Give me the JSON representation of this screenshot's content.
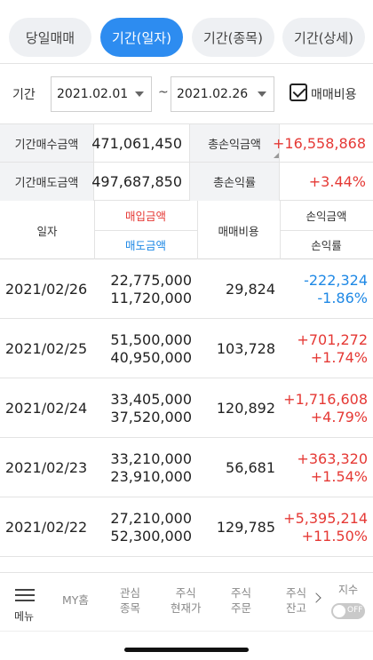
{
  "tabs": [
    {
      "label": "당일매매",
      "active": false
    },
    {
      "label": "기간(일자)",
      "active": true
    },
    {
      "label": "기간(종목)",
      "active": false
    },
    {
      "label": "기간(상세)",
      "active": false
    }
  ],
  "filter": {
    "label": "기간",
    "start_date": "2021.02.01",
    "separator": "~",
    "end_date": "2021.02.26",
    "fee_checkbox_label": "매매비용",
    "fee_checked": true
  },
  "summary": {
    "buy_label": "기간매수금액",
    "buy_value": "471,061,450",
    "pl_label": "총손익금액",
    "pl_value": "+16,558,868",
    "sell_label": "기간매도금액",
    "sell_value": "497,687,850",
    "rate_label": "총손익률",
    "rate_value": "+3.44%"
  },
  "table": {
    "headers": {
      "date": "일자",
      "buy": "매입금액",
      "sell": "매도금액",
      "fee": "매매비용",
      "pl": "손익금액",
      "rate": "손익률"
    },
    "rows": [
      {
        "date": "2021/02/26",
        "buy": "22,775,000",
        "sell": "11,720,000",
        "fee": "29,824",
        "pl": "-222,324",
        "rate": "-1.86%",
        "sign": "neg"
      },
      {
        "date": "2021/02/25",
        "buy": "51,500,000",
        "sell": "40,950,000",
        "fee": "103,728",
        "pl": "+701,272",
        "rate": "+1.74%",
        "sign": "pos"
      },
      {
        "date": "2021/02/24",
        "buy": "33,405,000",
        "sell": "37,520,000",
        "fee": "120,892",
        "pl": "+1,716,608",
        "rate": "+4.79%",
        "sign": "pos"
      },
      {
        "date": "2021/02/23",
        "buy": "33,210,000",
        "sell": "23,910,000",
        "fee": "56,681",
        "pl": "+363,320",
        "rate": "+1.54%",
        "sign": "pos"
      },
      {
        "date": "2021/02/22",
        "buy": "27,210,000",
        "sell": "52,300,000",
        "fee": "129,785",
        "pl": "+5,395,214",
        "rate": "+11.50%",
        "sign": "pos"
      }
    ]
  },
  "bottom_nav": {
    "menu_icon": "hamburger-icon",
    "menu_label": "메뉴",
    "items": [
      "MY홈",
      "관심\n종목",
      "주식\n현재가",
      "주식\n주문",
      "주식\n잔고"
    ],
    "index_label": "지수",
    "toggle_label": "OFF"
  },
  "colors": {
    "accent": "#2d8cf0",
    "positive": "#e53935",
    "negative": "#1e88e5"
  }
}
